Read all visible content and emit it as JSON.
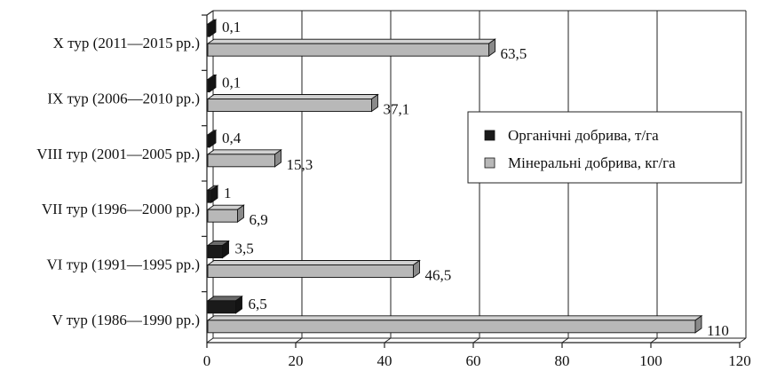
{
  "chart_data": {
    "type": "bar",
    "orientation": "horizontal",
    "style": "3d",
    "categories": [
      "X  тур (2011—2015 рр.)",
      "IX тур (2006—2010 рр.)",
      "VIII тур  (2001—2005 рр.)",
      "VII тур  (1996—2000 рр.)",
      "VI тур  (1991—1995 рр.)",
      "V тур (1986—1990 рр.)"
    ],
    "series": [
      {
        "name": "Органічні добрива, т/га",
        "color": "#1a1a1a",
        "values": [
          0.1,
          0.1,
          0.4,
          1,
          3.5,
          6.5
        ],
        "labels": [
          "0,1",
          "0,1",
          "0,4",
          "1",
          "3,5",
          "6,5"
        ]
      },
      {
        "name": "Мінеральні добрива, кг/га",
        "color": "#b8b8b8",
        "values": [
          63.5,
          37.1,
          15.3,
          6.9,
          46.5,
          110
        ],
        "labels": [
          "63,5",
          "37,1",
          "15,3",
          "6,9",
          "46,5",
          "110"
        ]
      }
    ],
    "xlim": [
      0,
      120
    ],
    "xticks": [
      0,
      20,
      40,
      60,
      80,
      100,
      120
    ],
    "grid": true,
    "legend_position": "right"
  }
}
